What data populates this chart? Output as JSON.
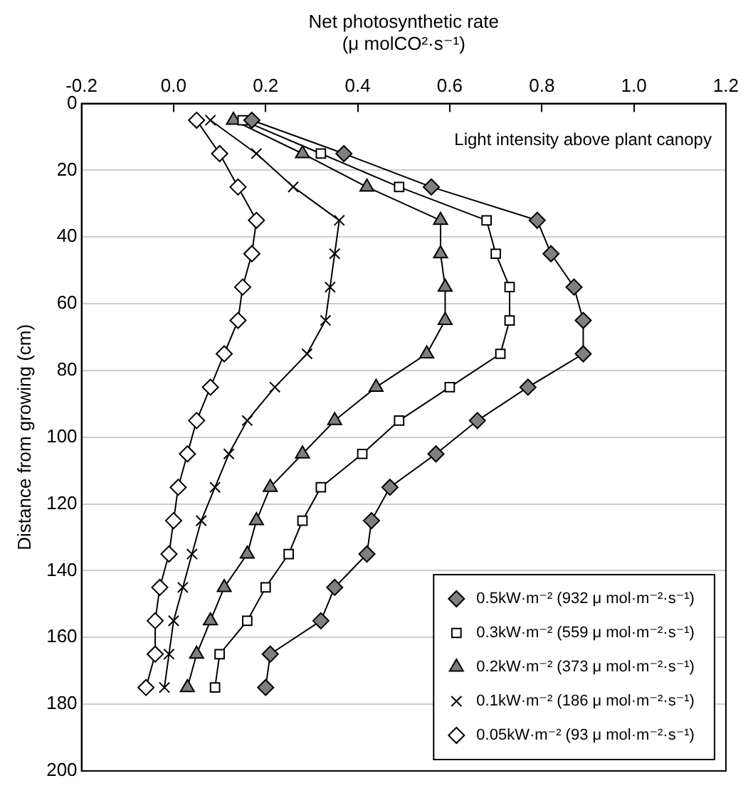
{
  "chart_data": {
    "type": "line",
    "orientation": "horizontal",
    "xlabel": "Net photosynthetic rate\n(μ molCO²·s⁻¹)",
    "ylabel": "Distance from growing (cm)",
    "annotations": [
      "Light intensity above plant canopy"
    ],
    "x": [
      5,
      15,
      25,
      35,
      45,
      55,
      65,
      75,
      85,
      95,
      105,
      115,
      125,
      135,
      145,
      155,
      165,
      175
    ],
    "xlim": [
      -0.2,
      1.2
    ],
    "xticks": [
      {
        "value": -0.2,
        "label": "-0.2"
      },
      {
        "value": 0,
        "label": "0.0"
      },
      {
        "value": 0.2,
        "label": "0.2"
      },
      {
        "value": 0.4,
        "label": "0.4"
      },
      {
        "value": 0.6,
        "label": "0.6"
      },
      {
        "value": 0.8,
        "label": "0.8"
      },
      {
        "value": 1,
        "label": "1.0"
      },
      {
        "value": 1.2,
        "label": "1.2"
      }
    ],
    "ylim": [
      200,
      0
    ],
    "yticks": [
      0,
      20,
      40,
      60,
      80,
      100,
      120,
      140,
      160,
      180,
      200
    ],
    "grid": "y",
    "legend": "bottom right",
    "line_style": "solid",
    "series": [
      {
        "name": "0.5kW·m⁻² (932 μ mol·m⁻²·s⁻¹)",
        "color": "#7f7f7f",
        "marker": "diamond",
        "values": [
          0.17,
          0.37,
          0.56,
          0.79,
          0.82,
          0.87,
          0.89,
          0.89,
          0.77,
          0.66,
          0.57,
          0.47,
          0.43,
          0.42,
          0.35,
          0.32,
          0.21,
          0.2
        ]
      },
      {
        "name": "0.3kW·m⁻² (559 μ mol·m⁻²·s⁻¹)",
        "color": "#ffffff",
        "marker": "square",
        "values": [
          0.15,
          0.32,
          0.49,
          0.68,
          0.7,
          0.73,
          0.73,
          0.71,
          0.6,
          0.49,
          0.41,
          0.32,
          0.28,
          0.25,
          0.2,
          0.16,
          0.1,
          0.09
        ]
      },
      {
        "name": "0.2kW·m⁻² (373 μ mol·m⁻²·s⁻¹)",
        "color": "#7f7f7f",
        "marker": "triangle",
        "values": [
          0.13,
          0.28,
          0.42,
          0.58,
          0.58,
          0.59,
          0.59,
          0.55,
          0.44,
          0.35,
          0.28,
          0.21,
          0.18,
          0.16,
          0.11,
          0.08,
          0.05,
          0.03
        ]
      },
      {
        "name": "0.1kW·m⁻² (186 μ mol·m⁻²·s⁻¹)",
        "color": "#000000",
        "marker": "cross",
        "values": [
          0.08,
          0.18,
          0.26,
          0.36,
          0.35,
          0.34,
          0.33,
          0.29,
          0.22,
          0.16,
          0.12,
          0.09,
          0.06,
          0.04,
          0.02,
          0.0,
          -0.01,
          -0.02
        ]
      },
      {
        "name": "0.05kW·m⁻² (93 μ mol·m⁻²·s⁻¹)",
        "color": "#ffffff",
        "marker": "diamond",
        "values": [
          0.05,
          0.1,
          0.14,
          0.18,
          0.17,
          0.15,
          0.14,
          0.11,
          0.08,
          0.05,
          0.03,
          0.01,
          0.0,
          -0.01,
          -0.03,
          -0.04,
          -0.04,
          -0.06
        ]
      }
    ]
  }
}
